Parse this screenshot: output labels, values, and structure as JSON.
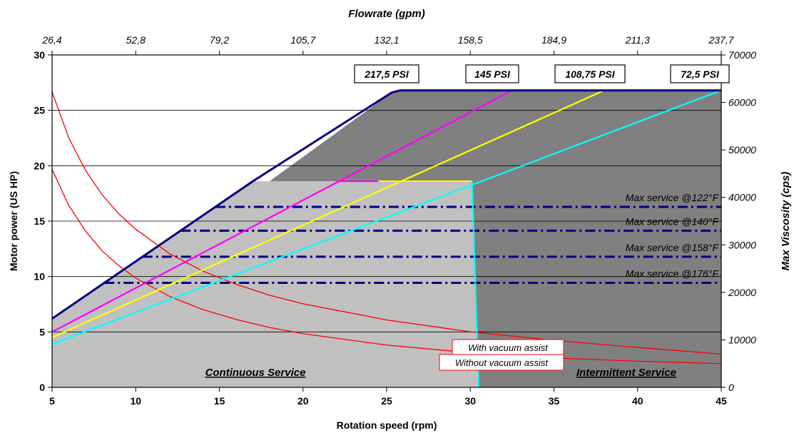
{
  "chart_data": {
    "type": "line",
    "title": "",
    "xlabel": "Rotation speed (rpm)",
    "ylabel": "Motor power (US HP)",
    "y2label": "Max Viscosity (cps)",
    "x2label": "Flowrate (gpm)",
    "xlim": [
      5,
      45
    ],
    "ylim": [
      0,
      30
    ],
    "y2lim": [
      0,
      70000
    ],
    "grid": true,
    "x_ticks": [
      "5",
      "10",
      "15",
      "20",
      "25",
      "30",
      "35",
      "40",
      "45"
    ],
    "y_ticks": [
      "0",
      "5",
      "10",
      "15",
      "20",
      "25",
      "30"
    ],
    "y2_ticks": [
      "0",
      "10000",
      "20000",
      "30000",
      "40000",
      "50000",
      "60000",
      "70000"
    ],
    "x2_ticks": [
      "26,4",
      "52,8",
      "79,2",
      "105,7",
      "132,1",
      "158,5",
      "184,9",
      "211,3",
      "237,7"
    ],
    "regions": [
      {
        "name": "Continuous Service",
        "color": "#c0c0c0",
        "points": [
          [
            5,
            0
          ],
          [
            5,
            6.2
          ],
          [
            17,
            18.6
          ],
          [
            30.1,
            18.6
          ],
          [
            30.5,
            0
          ]
        ]
      },
      {
        "name": "Intermittent Service",
        "color": "#808080",
        "points": [
          [
            30.5,
            0
          ],
          [
            30.1,
            18.6
          ],
          [
            18,
            18.6
          ],
          [
            25.3,
            26.6
          ],
          [
            25.8,
            26.8
          ],
          [
            45,
            26.8
          ],
          [
            45,
            0
          ]
        ]
      }
    ],
    "series": [
      {
        "name": "217,5 PSI",
        "color": "#000080",
        "x": [
          5,
          17,
          25.3,
          25.8,
          45
        ],
        "y": [
          6.2,
          18.6,
          26.6,
          26.8,
          26.8
        ]
      },
      {
        "name": "145 PSI",
        "color": "#ff00ff",
        "x": [
          5,
          32.5,
          45
        ],
        "y": [
          5.0,
          26.8,
          26.8
        ]
      },
      {
        "name": "108,75 PSI",
        "color": "#ffff00",
        "x": [
          5,
          38,
          45
        ],
        "y": [
          4.5,
          26.8,
          26.8
        ]
      },
      {
        "name": "72,5 PSI",
        "color": "#00ffff",
        "x": [
          5,
          45
        ],
        "y": [
          3.9,
          26.8
        ]
      },
      {
        "name": "",
        "color": "#ff00ff",
        "x": [
          22,
          30.1
        ],
        "y": [
          18.6,
          18.6
        ]
      },
      {
        "name": "",
        "color": "#ffff00",
        "x": [
          24.5,
          30.1
        ],
        "y": [
          18.6,
          18.6
        ]
      },
      {
        "name": "",
        "color": "#00ffff",
        "x": [
          30.1,
          30.5
        ],
        "y": [
          18.6,
          0
        ]
      }
    ],
    "viscosity_curves": [
      {
        "name": "With vacuum assist",
        "color": "#ff0000",
        "x": [
          5,
          6,
          7,
          8,
          9,
          10,
          12,
          14,
          16,
          18,
          20,
          25,
          30,
          35,
          40,
          45
        ],
        "y": [
          62200,
          52500,
          45700,
          40500,
          36500,
          33300,
          28200,
          24500,
          21700,
          19400,
          17600,
          14200,
          11700,
          9900,
          8400,
          7000
        ]
      },
      {
        "name": "Without vacuum assist",
        "color": "#ff0000",
        "x": [
          5,
          6,
          7,
          8,
          9,
          10,
          12,
          14,
          16,
          18,
          20,
          25,
          30,
          35,
          40,
          45
        ],
        "y": [
          45900,
          38300,
          32900,
          28700,
          25600,
          23000,
          19200,
          16400,
          14300,
          12600,
          11300,
          8900,
          7300,
          6200,
          5500,
          5000
        ]
      }
    ],
    "service_lines": [
      {
        "name": "Max service @122°F",
        "y2": 38000
      },
      {
        "name": "Max service @140°F",
        "y2": 33000
      },
      {
        "name": "Max service @158°F",
        "y2": 27500
      },
      {
        "name": "Max service @176°F",
        "y2": 22000
      }
    ],
    "annotations": {
      "pressure_labels": [
        "217,5 PSI",
        "145 PSI",
        "108,75 PSI",
        "72,5 PSI"
      ],
      "continuous": "Continuous Service",
      "intermittent": "Intermittent Service",
      "with_vacuum": "With vacuum assist",
      "without_vacuum": "Without vacuum assist"
    }
  }
}
